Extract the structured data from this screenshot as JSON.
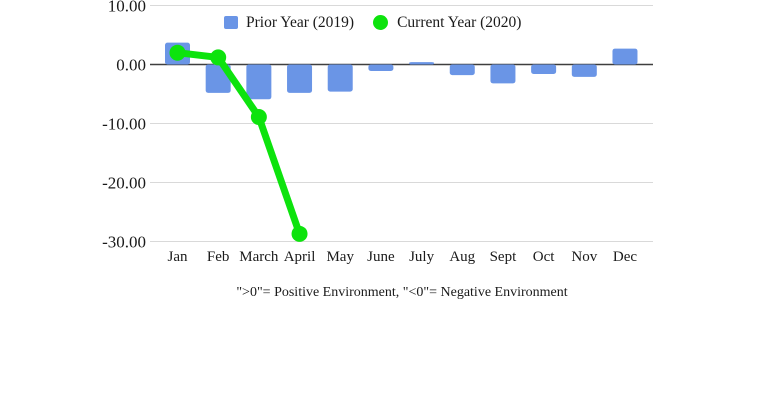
{
  "chart_data": {
    "type": "combo",
    "categories": [
      "Jan",
      "Feb",
      "March",
      "April",
      "May",
      "June",
      "July",
      "Aug",
      "Sept",
      "Oct",
      "Nov",
      "Dec"
    ],
    "series": [
      {
        "name": "Prior Year (2019)",
        "type": "bar",
        "color": "#6a95e6",
        "values": [
          3.7,
          -4.8,
          -5.9,
          -4.8,
          -4.6,
          -1.1,
          0.4,
          -1.8,
          -3.2,
          -1.6,
          -2.1,
          2.7
        ]
      },
      {
        "name": "Current Year (2020)",
        "type": "line",
        "color": "#0de30d",
        "values": [
          2.0,
          1.2,
          -8.9,
          -28.7,
          null,
          null,
          null,
          null,
          null,
          null,
          null,
          null
        ]
      }
    ],
    "title": "",
    "xlabel": "",
    "ylabel": "",
    "ylim": [
      -30,
      10
    ],
    "yticks": [
      10,
      0,
      -10,
      -20,
      -30
    ],
    "ytick_labels": [
      "10.00",
      "0.00",
      "-10.00",
      "-20.00",
      "-30.00"
    ],
    "grid": "horizontal",
    "legend_position": "top",
    "annotation": "\">0\"= Positive Environment, \"<0\"= Negative Environment"
  },
  "legend": {
    "prior_label": "Prior Year (2019)",
    "current_label": "Current Year (2020)"
  },
  "caption": {
    "text": "\">0\"= Positive Environment, \"<0\"= Negative Environment"
  },
  "colors": {
    "bar": "#6a95e6",
    "line": "#0de30d",
    "grid": "#d9d9d9",
    "zero_line": "#3f3f3f",
    "text": "#1a1a1a"
  }
}
